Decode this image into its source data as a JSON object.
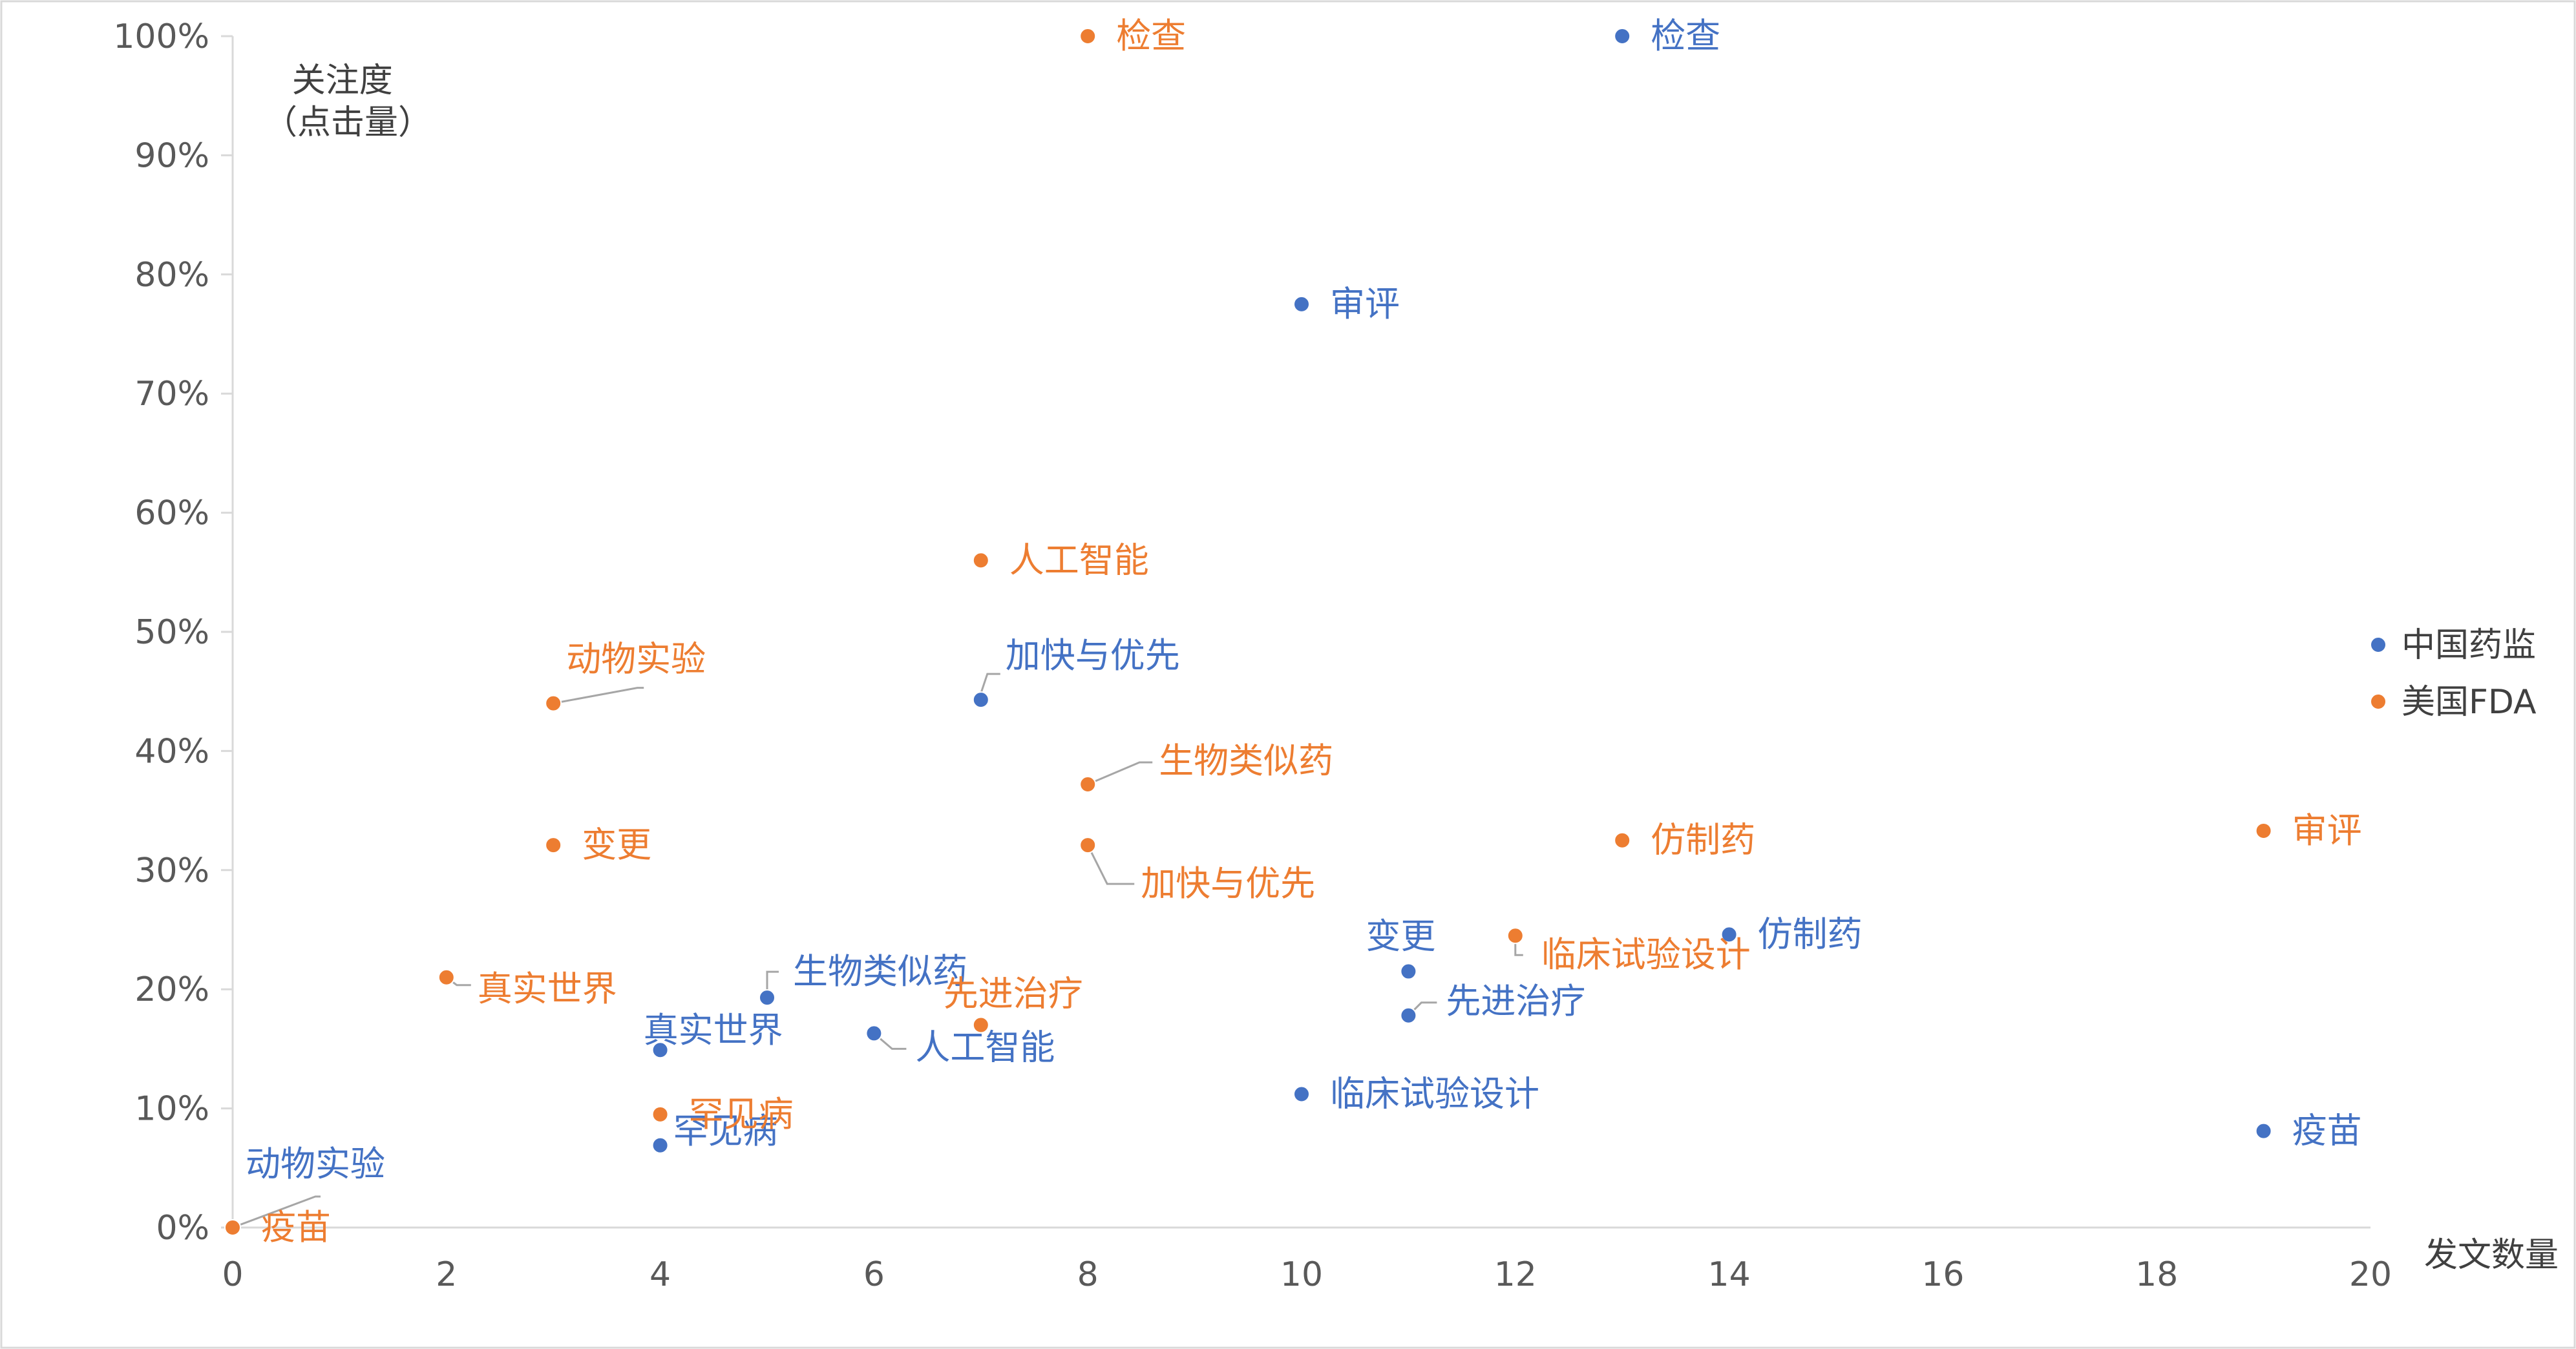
{
  "chart_data": {
    "type": "scatter",
    "xlabel": "发文数量",
    "ylabel_lines": [
      "关注度",
      "（点击量）"
    ],
    "xlim": [
      0,
      20
    ],
    "ylim": [
      0,
      1
    ],
    "x_ticks": [
      "0",
      "2",
      "4",
      "6",
      "8",
      "10",
      "12",
      "14",
      "16",
      "18",
      "20"
    ],
    "y_ticks": [
      "0%",
      "10%",
      "20%",
      "30%",
      "40%",
      "50%",
      "60%",
      "70%",
      "80%",
      "90%",
      "100%"
    ],
    "grid": false,
    "legend_position": "right",
    "series": [
      {
        "name": "中国药监",
        "color": "#4472C4",
        "points": [
          {
            "x": 13,
            "y": 1.0,
            "label": "检查"
          },
          {
            "x": 10,
            "y": 0.775,
            "label": "审评"
          },
          {
            "x": 7,
            "y": 0.443,
            "label": "加快与优先"
          },
          {
            "x": 14,
            "y": 0.246,
            "label": "仿制药"
          },
          {
            "x": 11,
            "y": 0.215,
            "label": "变更"
          },
          {
            "x": 5,
            "y": 0.193,
            "label": "生物类似药"
          },
          {
            "x": 11,
            "y": 0.178,
            "label": "先进治疗"
          },
          {
            "x": 6,
            "y": 0.163,
            "label": "人工智能"
          },
          {
            "x": 4,
            "y": 0.149,
            "label": "真实世界"
          },
          {
            "x": 10,
            "y": 0.112,
            "label": "临床试验设计"
          },
          {
            "x": 19,
            "y": 0.081,
            "label": "疫苗"
          },
          {
            "x": 4,
            "y": 0.069,
            "label": "罕见病"
          },
          {
            "x": 0,
            "y": 0.0,
            "label": "动物实验"
          }
        ]
      },
      {
        "name": "美国FDA",
        "color": "#ED7D31",
        "points": [
          {
            "x": 8,
            "y": 1.0,
            "label": "检查"
          },
          {
            "x": 7,
            "y": 0.56,
            "label": "人工智能"
          },
          {
            "x": 3,
            "y": 0.44,
            "label": "动物实验"
          },
          {
            "x": 8,
            "y": 0.372,
            "label": "生物类似药"
          },
          {
            "x": 19,
            "y": 0.333,
            "label": "审评"
          },
          {
            "x": 13,
            "y": 0.325,
            "label": "仿制药"
          },
          {
            "x": 3,
            "y": 0.321,
            "label": "变更"
          },
          {
            "x": 8,
            "y": 0.321,
            "label": "加快与优先"
          },
          {
            "x": 12,
            "y": 0.245,
            "label": "临床试验设计"
          },
          {
            "x": 2,
            "y": 0.21,
            "label": "真实世界"
          },
          {
            "x": 7,
            "y": 0.17,
            "label": "先进治疗"
          },
          {
            "x": 4,
            "y": 0.095,
            "label": "罕见病"
          },
          {
            "x": 0,
            "y": 0.0,
            "label": "疫苗"
          }
        ]
      }
    ]
  }
}
